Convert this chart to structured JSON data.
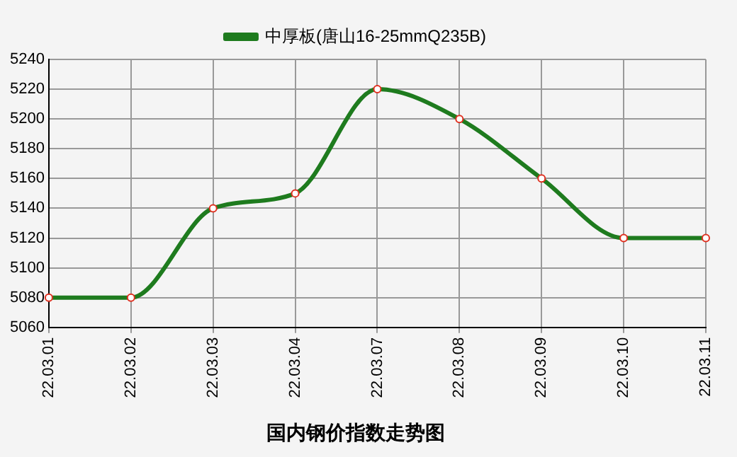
{
  "chart_data": {
    "type": "line",
    "title": "国内钢价指数走势图",
    "categories": [
      "22.03.01",
      "22.03.02",
      "22.03.03",
      "22.03.04",
      "22.03.07",
      "22.03.08",
      "22.03.09",
      "22.03.10",
      "22.03.11"
    ],
    "series": [
      {
        "name": "中厚板(唐山16-25mmQ235B)",
        "color": "#1e7b1e",
        "values": [
          5080,
          5080,
          5140,
          5150,
          5220,
          5200,
          5160,
          5120,
          5120
        ]
      }
    ],
    "ylim": [
      5060,
      5240
    ],
    "yticks": [
      5060,
      5080,
      5100,
      5120,
      5140,
      5160,
      5180,
      5200,
      5220,
      5240
    ],
    "grid": true,
    "legend": "top",
    "marker": "circle",
    "line_style": "solid"
  }
}
